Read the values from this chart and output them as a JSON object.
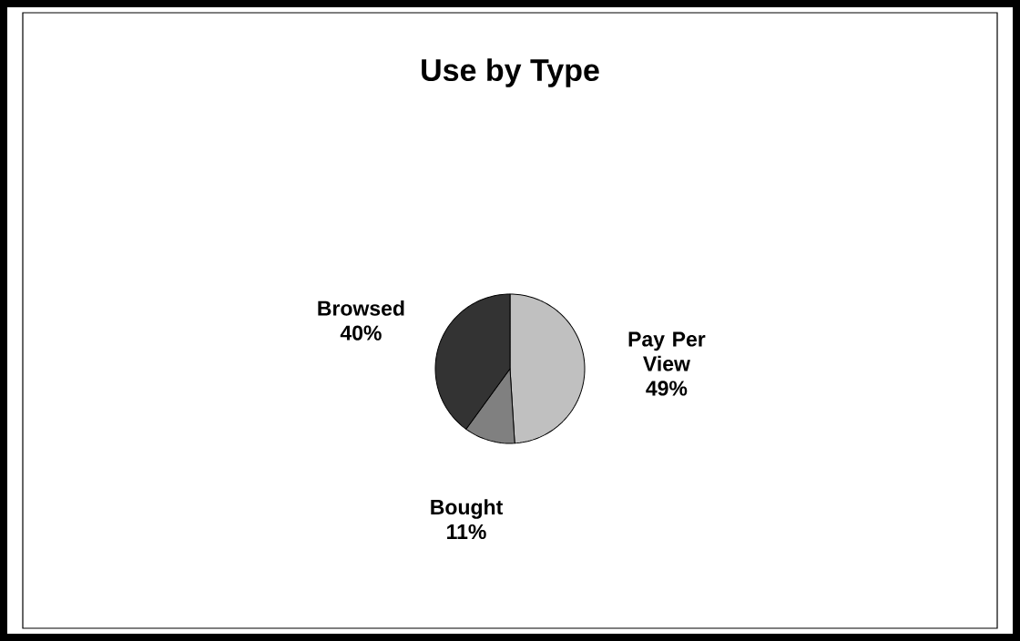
{
  "chart_data": {
    "type": "pie",
    "title": "Use by Type",
    "categories": [
      "Pay Per View",
      "Bought",
      "Browsed"
    ],
    "values": [
      49,
      11,
      40
    ],
    "colors": [
      "#c0c0c0",
      "#808080",
      "#333333"
    ],
    "value_labels": [
      "49%",
      "11%",
      "40%"
    ]
  }
}
